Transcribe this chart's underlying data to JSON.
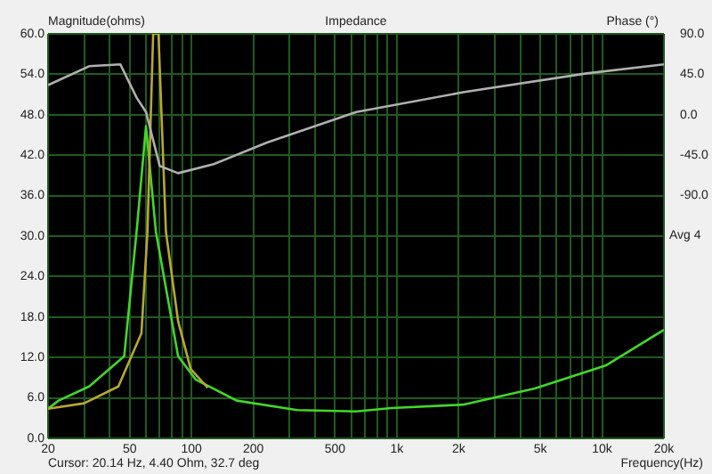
{
  "chart_data": {
    "type": "line",
    "title": "Impedance",
    "ylabel": "Magnitude(ohms)",
    "y2label": "Phase (°)",
    "xlabel": "Frequency(Hz)",
    "annotations": [
      "Cursor: 20.14 Hz, 4.40 Ohm, 32.7 deg",
      "Avg 4"
    ],
    "log": "x",
    "grid": true,
    "legend": false,
    "marker": "none",
    "line_style": "solid",
    "xlim": [
      20,
      20000
    ],
    "xticks": [
      20,
      {
        "value": 30,
        "label": null
      },
      {
        "value": 40,
        "label": null
      },
      50,
      {
        "value": 60,
        "label": null
      },
      {
        "value": 70,
        "label": null
      },
      {
        "value": 80,
        "label": null
      },
      {
        "value": 90,
        "label": null
      },
      100,
      200,
      {
        "value": 300,
        "label": null
      },
      {
        "value": 400,
        "label": null
      },
      500,
      {
        "value": 600,
        "label": null
      },
      {
        "value": 700,
        "label": null
      },
      {
        "value": 800,
        "label": null
      },
      {
        "value": 900,
        "label": null
      },
      {
        "value": 1000,
        "label": "1k"
      },
      {
        "value": 2000,
        "label": "2k"
      },
      {
        "value": 3000,
        "label": null
      },
      {
        "value": 4000,
        "label": null
      },
      {
        "value": 5000,
        "label": "5k"
      },
      {
        "value": 6000,
        "label": null
      },
      {
        "value": 7000,
        "label": null
      },
      {
        "value": 8000,
        "label": null
      },
      {
        "value": 9000,
        "label": null
      },
      {
        "value": 10000,
        "label": "10k"
      },
      {
        "value": 20000,
        "label": "20k"
      }
    ],
    "ylim": [
      0,
      60
    ],
    "yticks": [
      {
        "value": 0,
        "label": "0.0"
      },
      {
        "value": 6,
        "label": "6.0"
      },
      {
        "value": 12,
        "label": "12.0"
      },
      {
        "value": 18,
        "label": "18.0"
      },
      {
        "value": 24,
        "label": "24.0"
      },
      {
        "value": 30,
        "label": "30.0"
      },
      {
        "value": 36,
        "label": "36.0"
      },
      {
        "value": 42,
        "label": "42.0"
      },
      {
        "value": 48,
        "label": "48.0"
      },
      {
        "value": 54,
        "label": "54.0"
      },
      {
        "value": 60,
        "label": "60.0"
      }
    ],
    "y2lim": [
      -360,
      90
    ],
    "y2ticks": [
      {
        "value": -90,
        "label": "-90.0"
      },
      {
        "value": -45,
        "label": "-45.0"
      },
      {
        "value": 0,
        "label": "0.0"
      },
      {
        "value": 45,
        "label": "45.0"
      },
      {
        "value": 90,
        "label": "90.0"
      }
    ],
    "series": [
      {
        "color": "#b0b0b0",
        "axis": "y2",
        "x": [
          20,
          31.7,
          45,
          54,
          60,
          70,
          86,
          128,
          233,
          634,
          2100,
          8400,
          20000
        ],
        "values": [
          33,
          54,
          56,
          19,
          3,
          -57,
          -65,
          -55,
          -31,
          3,
          25,
          46,
          56
        ]
      },
      {
        "color": "#b8a830",
        "x": [
          20,
          30,
          44,
          57,
          61,
          65,
          69,
          75,
          86,
          99,
          120
        ],
        "values": [
          4.4,
          5.2,
          7.7,
          15.6,
          30.7,
          60,
          60,
          30.7,
          17.4,
          10.3,
          7.5
        ]
      },
      {
        "color": "#44d62c",
        "x": [
          20,
          22.5,
          31.7,
          47,
          54,
          60,
          67,
          86,
          105,
          166,
          327,
          634,
          940,
          2100,
          4700,
          10400,
          20000
        ],
        "values": [
          4.4,
          5.6,
          7.7,
          12.2,
          30.7,
          46.3,
          30.7,
          12.2,
          8.7,
          5.6,
          4.2,
          4.0,
          4.5,
          5.0,
          7.4,
          10.8,
          16.1
        ]
      }
    ]
  }
}
